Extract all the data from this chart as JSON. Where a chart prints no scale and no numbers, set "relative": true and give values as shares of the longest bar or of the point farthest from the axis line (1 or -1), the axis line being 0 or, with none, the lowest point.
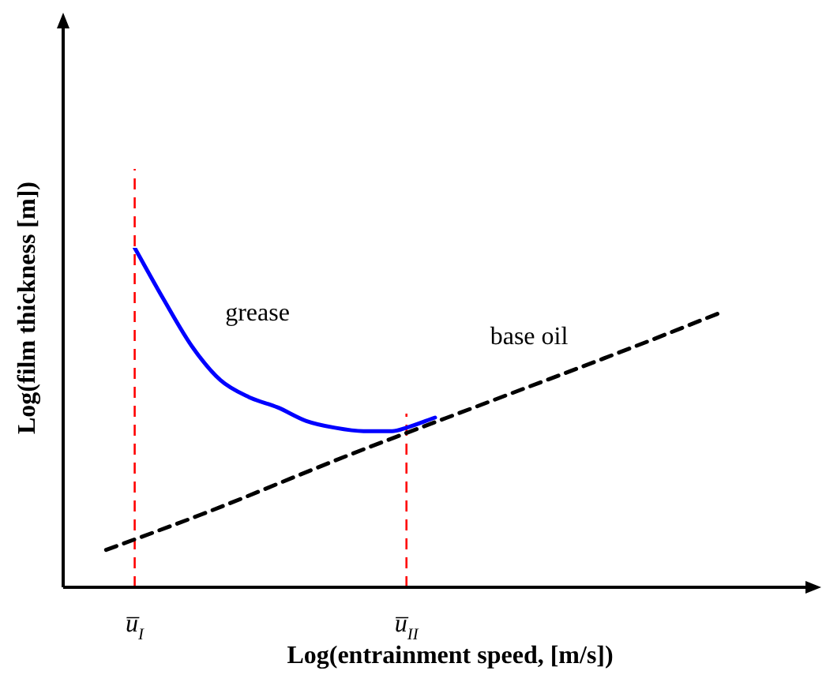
{
  "chart_data": {
    "type": "line",
    "relative": true,
    "xlabel": "Log(entrainment speed, [m/s])",
    "ylabel": "Log(film thickness [m])",
    "categories": [
      null,
      null,
      null,
      null,
      null,
      "u̅$_{I}$",
      null,
      null,
      null,
      null,
      null,
      null,
      null,
      null,
      null,
      null,
      null,
      null,
      null,
      null,
      null,
      null,
      null,
      null,
      "u̅$_{II}$",
      null,
      null,
      null,
      null,
      null,
      null,
      null,
      null,
      null,
      null,
      null,
      null,
      null,
      null,
      null,
      null,
      null,
      null,
      null,
      null,
      null,
      null,
      null,
      null,
      null,
      null,
      null,
      null,
      null
    ],
    "series": [
      {
        "name": "grease",
        "color": "#0000ff",
        "line_style": "solid",
        "values": [
          null,
          null,
          null,
          null,
          null,
          1,
          null,
          0.85,
          null,
          0.71,
          null,
          0.61,
          null,
          0.56,
          null,
          0.53,
          null,
          0.49,
          null,
          0.47,
          null,
          0.46,
          null,
          0.46,
          0.47,
          null,
          0.5,
          null,
          null,
          null,
          null,
          null,
          null,
          null,
          null,
          null,
          null,
          null,
          null,
          null,
          null,
          null,
          null,
          null,
          null,
          null,
          null,
          null,
          null,
          null,
          null,
          null,
          null,
          null
        ]
      },
      {
        "name": "base oil",
        "color": "#000000",
        "line_style": "dashed",
        "values": [
          null,
          null,
          null,
          0.11,
          null,
          null,
          null,
          null,
          null,
          null,
          0.22,
          null,
          null,
          null,
          null,
          null,
          null,
          null,
          null,
          null,
          0.39,
          null,
          null,
          null,
          null,
          null,
          null,
          null,
          null,
          null,
          0.55,
          null,
          null,
          null,
          null,
          null,
          null,
          null,
          null,
          null,
          0.71,
          null,
          null,
          null,
          null,
          null,
          0.81,
          null,
          null,
          null,
          null,
          null,
          null,
          null
        ]
      }
    ],
    "ref_lines": [
      {
        "axis": "x",
        "value": "u̅$_{I}$",
        "color": "#ff0000",
        "line_style": "dashed"
      },
      {
        "axis": "x",
        "value": "u̅$_{II}$",
        "color": "#ff0000",
        "line_style": "dashed"
      }
    ],
    "legend": false,
    "marker": "none"
  }
}
